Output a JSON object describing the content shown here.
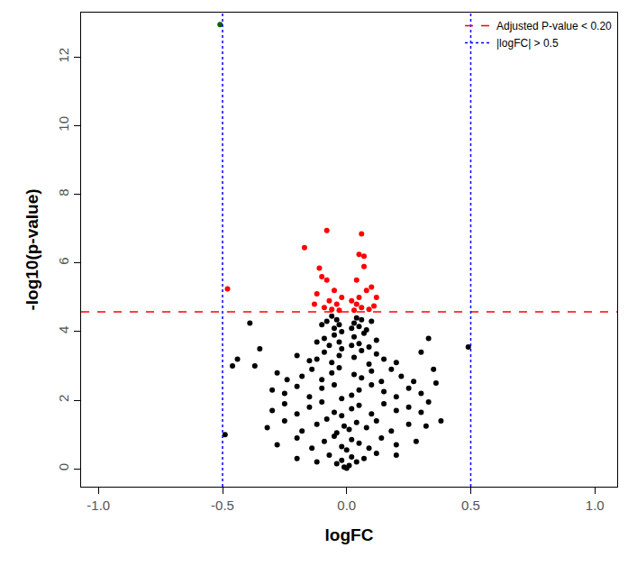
{
  "chart_data": {
    "type": "scatter",
    "xlabel": "logFC",
    "ylabel": "-log10(p-value)",
    "xlim": [
      -1.07,
      1.09
    ],
    "ylim": [
      -0.52,
      13.3
    ],
    "xticks": [
      {
        "value": -1,
        "label": "-1.0"
      },
      {
        "value": -0.5,
        "label": "-0.5"
      },
      {
        "value": 0,
        "label": "0.0"
      },
      {
        "value": 0.5,
        "label": "0.5"
      },
      {
        "value": 1,
        "label": "1.0"
      }
    ],
    "yticks": [
      0,
      2,
      4,
      6,
      8,
      10,
      12
    ],
    "grid": false,
    "legend": "top-right",
    "marker": "circle",
    "series": [
      {
        "color": "#000000",
        "x": [
          -0.08,
          -0.06,
          -0.05,
          -0.04,
          -0.03,
          0.03,
          0.04,
          0.05,
          0.06,
          0.08,
          -0.1,
          0.1,
          -0.02,
          0.02,
          -0.09,
          -0.07,
          -0.05,
          -0.03,
          0.03,
          0.05,
          0.07,
          0.09,
          -0.12,
          0.12,
          -0.02,
          0.02,
          -0.12,
          -0.09,
          -0.06,
          -0.03,
          0.03,
          0.06,
          0.09,
          0.12,
          -0.15,
          0.15,
          -0.2,
          0.2,
          -0.18,
          -0.14,
          -0.1,
          -0.06,
          -0.03,
          0.03,
          0.06,
          0.1,
          0.14,
          0.18,
          -0.24,
          0.22,
          -0.28,
          0.27,
          -0.25,
          -0.2,
          -0.15,
          -0.1,
          -0.05,
          -0.02,
          0.02,
          0.05,
          0.1,
          0.15,
          0.2,
          0.25,
          0.3,
          -0.3,
          -0.3,
          -0.25,
          -0.2,
          -0.15,
          -0.1,
          -0.05,
          -0.02,
          0.02,
          0.05,
          0.1,
          0.15,
          0.2,
          0.25,
          0.3,
          0.33,
          -0.32,
          -0.25,
          -0.18,
          -0.12,
          -0.08,
          -0.04,
          -0.01,
          0.01,
          0.04,
          0.08,
          0.12,
          0.18,
          0.25,
          0.32,
          -0.28,
          -0.2,
          -0.14,
          -0.09,
          -0.05,
          -0.02,
          0,
          0.02,
          0.05,
          0.09,
          0.14,
          0.2,
          0.28,
          -0.2,
          -0.12,
          -0.07,
          -0.04,
          -0.02,
          -0.01,
          0,
          0.01,
          0.02,
          0.04,
          0.07,
          0.12,
          0.2,
          -0.49,
          -0.39,
          -0.46,
          0.49,
          0.38,
          0.33,
          -0.44,
          -0.35,
          -0.37,
          0.3,
          0.35,
          0.36
        ],
        "y": [
          4.3,
          4.45,
          4.1,
          4.35,
          4.2,
          4.25,
          4.4,
          4.15,
          4.35,
          4.05,
          4.2,
          4.3,
          4.0,
          4.1,
          3.8,
          3.6,
          3.9,
          3.7,
          3.85,
          3.65,
          3.95,
          3.55,
          3.7,
          3.75,
          3.5,
          3.6,
          3.2,
          3.4,
          3.1,
          3.3,
          3.25,
          3.45,
          3.05,
          3.35,
          3.15,
          3.2,
          3.3,
          3.1,
          2.7,
          2.9,
          2.6,
          2.8,
          2.95,
          2.75,
          2.65,
          2.85,
          2.55,
          2.9,
          2.6,
          2.7,
          2.8,
          2.55,
          2.2,
          2.4,
          2.1,
          2.35,
          2.45,
          2.05,
          2.15,
          2.3,
          2.45,
          2.25,
          2.1,
          2.35,
          2.2,
          2.3,
          1.7,
          1.9,
          1.6,
          1.8,
          1.95,
          1.65,
          1.55,
          1.75,
          1.85,
          1.6,
          1.9,
          1.7,
          1.8,
          1.65,
          1.95,
          1.2,
          1.4,
          1.1,
          1.3,
          1.45,
          1.05,
          1.25,
          1.15,
          1.35,
          1.2,
          1.4,
          1.1,
          1.3,
          1.25,
          0.7,
          0.9,
          0.6,
          0.8,
          0.95,
          0.65,
          0.55,
          0.85,
          0.75,
          0.6,
          0.9,
          0.7,
          0.8,
          0.3,
          0.2,
          0.4,
          0.15,
          0.25,
          0.05,
          0.02,
          0.1,
          0.35,
          0.2,
          0.3,
          0.45,
          0.4,
          1.0,
          4.25,
          3.0,
          3.55,
          1.4,
          3.8,
          3.2,
          3.5,
          3.0,
          3.4,
          2.9,
          2.5
        ]
      },
      {
        "color": "#ff0000",
        "x": [
          -0.48,
          -0.08,
          0.06,
          -0.17,
          0.05,
          0.07,
          0.07,
          -0.11,
          -0.1,
          -0.08,
          0.04,
          0.1,
          0.08,
          -0.05,
          -0.12,
          0.12,
          0.05,
          -0.07,
          -0.04,
          0.04,
          0.06,
          -0.09,
          -0.06,
          0.09,
          0.03,
          -0.03,
          0.11,
          -0.13,
          0.02,
          -0.02
        ],
        "y": [
          5.25,
          6.95,
          6.85,
          6.45,
          6.25,
          6.2,
          5.9,
          5.85,
          5.6,
          5.5,
          5.5,
          5.3,
          5.2,
          5.2,
          5.1,
          5.0,
          5.0,
          4.9,
          4.8,
          4.8,
          4.7,
          4.7,
          4.65,
          4.65,
          4.62,
          4.62,
          4.75,
          4.8,
          4.9,
          5.0
        ]
      },
      {
        "color": "#006400",
        "x": [
          -0.51
        ],
        "y": [
          12.95
        ]
      }
    ],
    "thresholds": [
      {
        "label": "Adjusted P-value < 0.20",
        "axis": "y",
        "values": [
          4.58
        ],
        "color": "#ff0000",
        "line_style": "dash"
      },
      {
        "label": "|logFC| > 0.5",
        "axis": "x",
        "values": [
          -0.5,
          0.5
        ],
        "color": "#0000ff",
        "line_style": "dot"
      }
    ]
  }
}
